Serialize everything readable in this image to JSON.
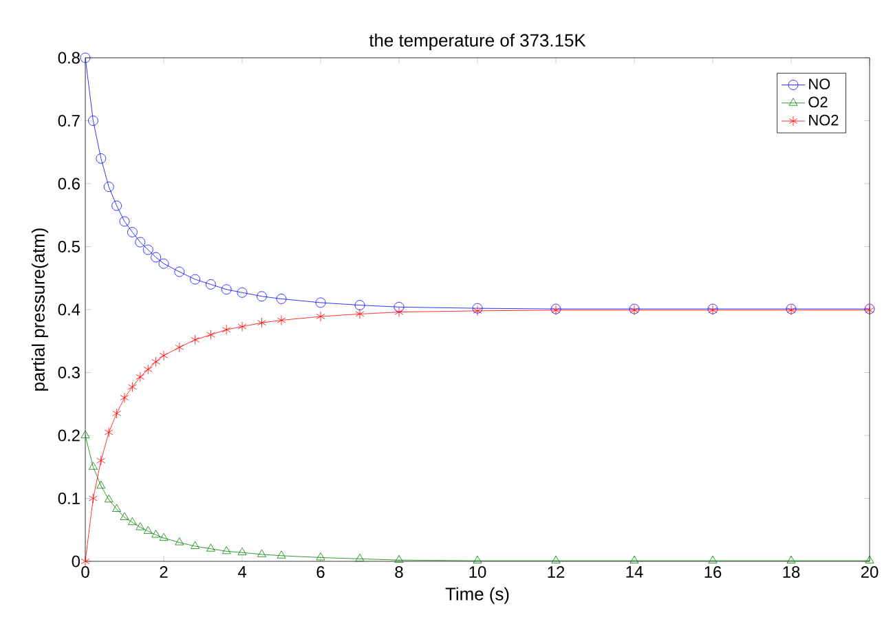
{
  "chart_data": {
    "type": "line",
    "title": "the temperature of 373.15K",
    "xlabel": "Time (s)",
    "ylabel": "partial pressure(atm)",
    "x": [
      0,
      0.2,
      0.4,
      0.6,
      0.8,
      1.0,
      1.2,
      1.4,
      1.6,
      1.8,
      2.0,
      2.4,
      2.8,
      3.2,
      3.6,
      4,
      4.5,
      5,
      6,
      7,
      8,
      10,
      12,
      14,
      16,
      18,
      20
    ],
    "series": [
      {
        "name": "NO",
        "color": "#0000ff",
        "marker": "circle",
        "values": [
          0.8,
          0.7,
          0.64,
          0.595,
          0.565,
          0.54,
          0.523,
          0.507,
          0.495,
          0.483,
          0.473,
          0.46,
          0.448,
          0.44,
          0.432,
          0.427,
          0.421,
          0.417,
          0.411,
          0.407,
          0.404,
          0.402,
          0.401,
          0.401,
          0.401,
          0.401,
          0.401
        ]
      },
      {
        "name": "O2",
        "color": "#008000",
        "marker": "triangle",
        "values": [
          0.2,
          0.15,
          0.12,
          0.098,
          0.083,
          0.07,
          0.062,
          0.054,
          0.048,
          0.042,
          0.037,
          0.03,
          0.024,
          0.02,
          0.016,
          0.014,
          0.011,
          0.009,
          0.006,
          0.004,
          0.002,
          0.001,
          0.001,
          0.001,
          0.001,
          0.001,
          0.001
        ]
      },
      {
        "name": "NO2",
        "color": "#ff0000",
        "marker": "cross",
        "values": [
          0,
          0.1,
          0.16,
          0.205,
          0.235,
          0.26,
          0.277,
          0.293,
          0.305,
          0.317,
          0.327,
          0.34,
          0.352,
          0.36,
          0.368,
          0.373,
          0.379,
          0.383,
          0.389,
          0.393,
          0.396,
          0.398,
          0.399,
          0.399,
          0.399,
          0.399,
          0.399
        ]
      }
    ],
    "xlim": [
      0,
      20
    ],
    "ylim": [
      0,
      0.8
    ],
    "xticks": [
      0,
      2,
      4,
      6,
      8,
      10,
      12,
      14,
      16,
      18,
      20
    ],
    "yticks": [
      0,
      0.1,
      0.2,
      0.3,
      0.4,
      0.5,
      0.6,
      0.7,
      0.8
    ],
    "legend": "top right",
    "grid": false,
    "line_style": "solid"
  }
}
